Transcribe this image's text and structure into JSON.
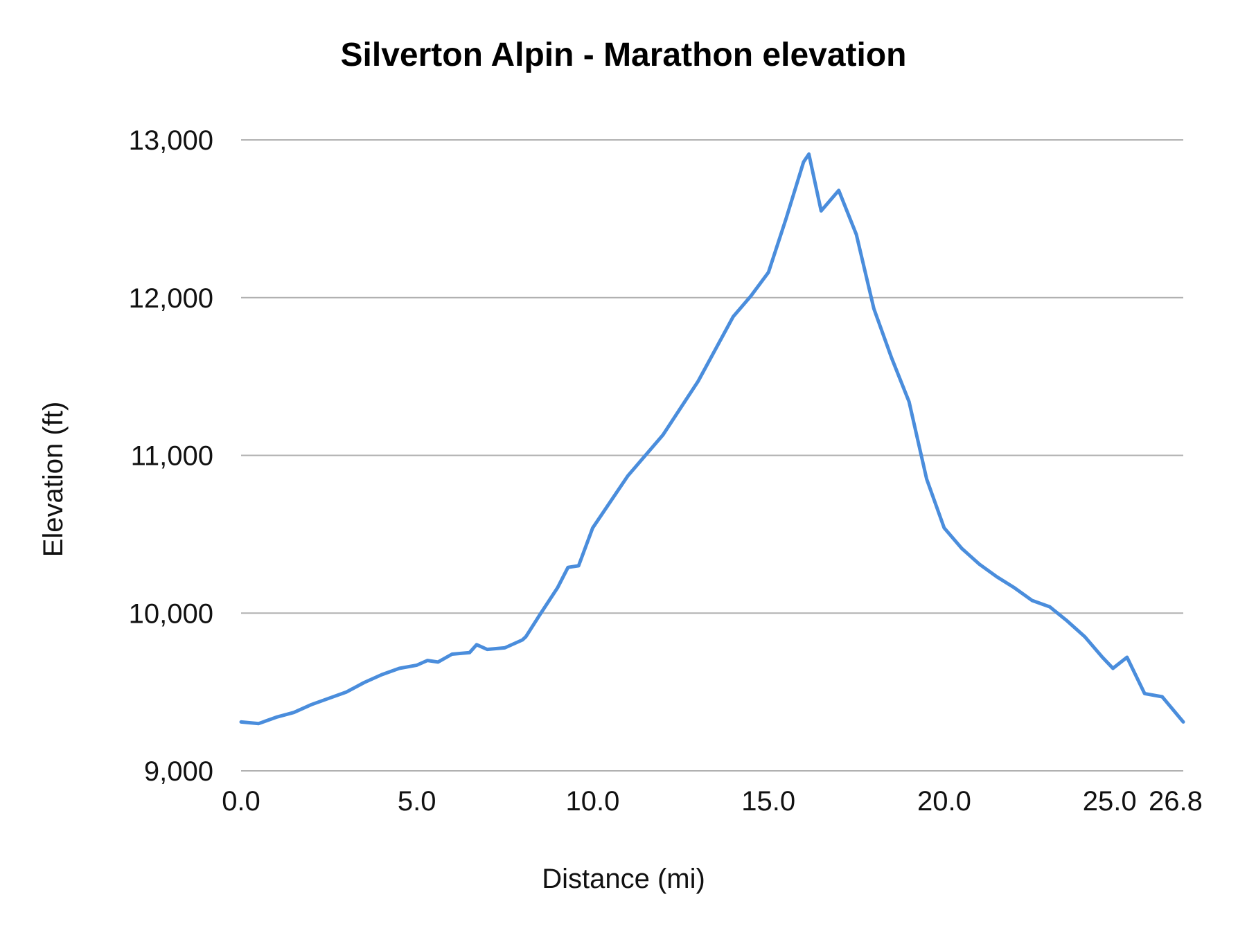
{
  "chart_data": {
    "type": "line",
    "title": "Silverton Alpin - Marathon elevation",
    "xlabel": "Distance (mi)",
    "ylabel": "Elevation (ft)",
    "xlim": [
      0,
      26.8
    ],
    "ylim": [
      9000,
      13000
    ],
    "x_ticks": [
      "0.0",
      "5.0",
      "10.0",
      "15.0",
      "20.0",
      "25.0",
      "26.8"
    ],
    "x_tick_values": [
      0,
      5,
      10,
      15,
      20,
      25,
      26.8
    ],
    "y_ticks": [
      "9,000",
      "10,000",
      "11,000",
      "12,000",
      "13,000"
    ],
    "y_tick_values": [
      9000,
      10000,
      11000,
      12000,
      13000
    ],
    "grid": "horizontal",
    "legend": "none",
    "line_color": "#4a8ddc",
    "series": [
      {
        "x": [
          0,
          0.5,
          1,
          1.5,
          2,
          2.5,
          3,
          3.5,
          4,
          4.5,
          5,
          5.3,
          5.6,
          6,
          6.5,
          6.7,
          7,
          7.5,
          8,
          8.1,
          8.5,
          9,
          9.3,
          9.6,
          10,
          11,
          12,
          13,
          14,
          14.5,
          15,
          15.5,
          16,
          16.15,
          16.5,
          17,
          17.5,
          18,
          18.5,
          19,
          19.5,
          20,
          20.5,
          21,
          21.5,
          22,
          22.5,
          23,
          23.5,
          24,
          24.5,
          24.8,
          25.2,
          25.7,
          26.2,
          26.8
        ],
        "y": [
          9310,
          9300,
          9340,
          9370,
          9420,
          9460,
          9500,
          9560,
          9610,
          9650,
          9670,
          9700,
          9690,
          9740,
          9750,
          9800,
          9770,
          9780,
          9830,
          9850,
          9990,
          10160,
          10290,
          10300,
          10540,
          10870,
          11130,
          11470,
          11880,
          12010,
          12160,
          12500,
          12860,
          12910,
          12550,
          12680,
          12400,
          11930,
          11620,
          11340,
          10850,
          10540,
          10410,
          10310,
          10230,
          10160,
          10080,
          10040,
          9950,
          9850,
          9720,
          9650,
          9720,
          9490,
          9470,
          9310
        ]
      }
    ]
  }
}
